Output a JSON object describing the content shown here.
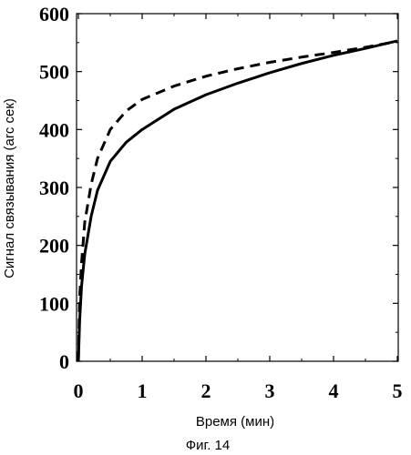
{
  "figure": {
    "caption": "Фиг. 14"
  },
  "chart_data": {
    "type": "line",
    "title": "",
    "xlabel": "Время (мин)",
    "ylabel": "Сигнал связывания (arc сек)",
    "xlim": [
      0,
      5
    ],
    "ylim": [
      0,
      600
    ],
    "xticks": [
      0,
      1,
      2,
      3,
      4,
      5
    ],
    "yticks": [
      0,
      100,
      200,
      300,
      400,
      500,
      600
    ],
    "grid": false,
    "legend": "none",
    "series": [
      {
        "style": "solid",
        "color": "#000000",
        "x": [
          0,
          0.02,
          0.05,
          0.1,
          0.2,
          0.3,
          0.5,
          0.75,
          1.0,
          1.5,
          2.0,
          2.5,
          3.0,
          3.5,
          4.0,
          4.5,
          5.0
        ],
        "y": [
          0,
          70,
          130,
          185,
          250,
          295,
          345,
          378,
          400,
          435,
          460,
          480,
          498,
          514,
          528,
          540,
          553
        ]
      },
      {
        "style": "dashed",
        "color": "#000000",
        "x": [
          0,
          0.02,
          0.05,
          0.1,
          0.2,
          0.3,
          0.5,
          0.75,
          1.0,
          1.5,
          2.0,
          2.5,
          3.0,
          3.5,
          4.0,
          4.5,
          5.0
        ],
        "y": [
          0,
          110,
          170,
          240,
          305,
          350,
          400,
          432,
          452,
          475,
          492,
          505,
          516,
          525,
          533,
          542,
          552
        ]
      }
    ]
  }
}
